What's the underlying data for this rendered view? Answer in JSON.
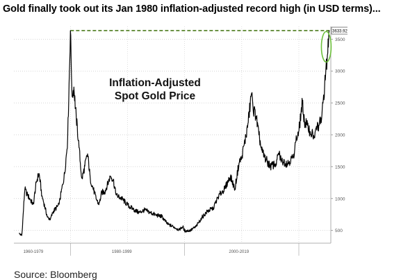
{
  "headline": "Gold finally took out its Jan 1980 inflation-adjusted record high (in USD terms)...",
  "source": "Source: Bloomberg",
  "chart_data": {
    "type": "line",
    "annotation_line1": "Inflation-Adjusted",
    "annotation_line2": "Spot Gold Price",
    "last_value_label": "3633.92",
    "ylim": [
      300,
      3700
    ],
    "y_ticks": [
      500,
      1000,
      1500,
      2000,
      2500,
      3000,
      3500
    ],
    "grid": true,
    "x_period_labels": [
      "1960-1979",
      "1980-1999",
      "2000-2019"
    ],
    "colors": {
      "line": "#000000",
      "record_line": "#4a7a1a",
      "highlight_circle": "#6cbf3a",
      "grid": "#c8c8c8"
    },
    "series": [
      {
        "name": "Inflation-Adjusted Spot Gold Price (USD)",
        "x": [
          1971.0,
          1971.5,
          1972.0,
          1972.5,
          1973.0,
          1973.5,
          1974.0,
          1974.5,
          1975.0,
          1976.0,
          1976.5,
          1977.0,
          1978.0,
          1979.0,
          1979.5,
          1980.0,
          1980.3,
          1980.6,
          1981.0,
          1981.5,
          1982.0,
          1982.5,
          1983.0,
          1983.5,
          1984.5,
          1985.0,
          1985.5,
          1986.0,
          1987.0,
          1987.5,
          1988.0,
          1989.0,
          1990.0,
          1991.0,
          1992.0,
          1993.0,
          1994.0,
          1995.0,
          1996.0,
          1997.0,
          1998.0,
          1999.0,
          1999.7,
          2000.0,
          2001.0,
          2002.0,
          2003.0,
          2004.0,
          2005.0,
          2006.0,
          2007.0,
          2008.0,
          2008.8,
          2009.5,
          2010.0,
          2011.0,
          2011.7,
          2012.0,
          2012.5,
          2013.0,
          2013.5,
          2014.0,
          2015.0,
          2016.0,
          2016.5,
          2017.0,
          2018.0,
          2019.0,
          2019.5,
          2020.0,
          2020.6,
          2021.0,
          2021.5,
          2022.0,
          2022.8,
          2023.0,
          2023.5,
          2024.0,
          2024.5,
          2025.0,
          2025.3
        ],
        "values": [
          450,
          420,
          1150,
          1050,
          980,
          900,
          1250,
          1400,
          1050,
          700,
          680,
          800,
          900,
          1400,
          1900,
          3634,
          2600,
          2750,
          2300,
          1800,
          1300,
          1500,
          1700,
          1300,
          1000,
          900,
          1100,
          1100,
          1350,
          1300,
          1050,
          1000,
          900,
          830,
          780,
          820,
          780,
          740,
          720,
          600,
          560,
          510,
          560,
          490,
          500,
          560,
          700,
          800,
          850,
          1050,
          1150,
          1350,
          1150,
          1550,
          1650,
          2100,
          2650,
          2400,
          2300,
          2000,
          1750,
          1650,
          1500,
          1550,
          1700,
          1600,
          1550,
          1650,
          1900,
          2050,
          2500,
          2200,
          2150,
          2050,
          1950,
          2100,
          2150,
          2250,
          2750,
          3250,
          3634
        ]
      }
    ]
  }
}
